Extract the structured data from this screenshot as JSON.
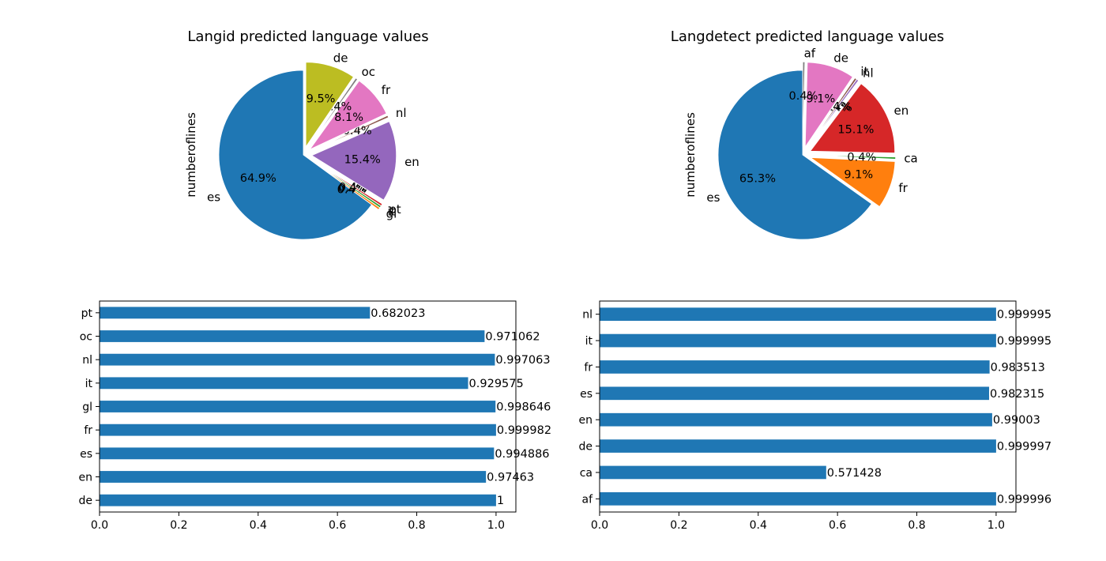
{
  "chart_data": [
    {
      "type": "pie",
      "title": "Langid predicted language values",
      "ylabel": "numberoflines",
      "slices": [
        {
          "label": "es",
          "value": 64.9,
          "pct_label": "64.9%",
          "color": "#1f77b4",
          "explode": 0.0
        },
        {
          "label": "gl",
          "value": 0.4,
          "pct_label": "0.4%",
          "color": "#ff7f0e",
          "explode": 0.1
        },
        {
          "label": "it",
          "value": 0.4,
          "pct_label": "0.4%",
          "color": "#2ca02c",
          "explode": 0.1
        },
        {
          "label": "pt",
          "value": 0.4,
          "pct_label": "0.4%",
          "color": "#d62728",
          "explode": 0.1
        },
        {
          "label": "en",
          "value": 15.4,
          "pct_label": "15.4%",
          "color": "#9467bd",
          "explode": 0.1
        },
        {
          "label": "nl",
          "value": 0.4,
          "pct_label": "0.4%",
          "color": "#8c564b",
          "explode": 0.1
        },
        {
          "label": "fr",
          "value": 8.1,
          "pct_label": "8.1%",
          "color": "#e377c2",
          "explode": 0.1
        },
        {
          "label": "oc",
          "value": 0.4,
          "pct_label": "0.4%",
          "color": "#7f7f7f",
          "explode": 0.1
        },
        {
          "label": "de",
          "value": 9.5,
          "pct_label": "9.5%",
          "color": "#bcbd22",
          "explode": 0.1
        }
      ]
    },
    {
      "type": "pie",
      "title": "Langdetect predicted language values",
      "ylabel": "numberoflines",
      "slices": [
        {
          "label": "es",
          "value": 65.3,
          "pct_label": "65.3%",
          "color": "#1f77b4",
          "explode": 0.0
        },
        {
          "label": "fr",
          "value": 9.1,
          "pct_label": "9.1%",
          "color": "#ff7f0e",
          "explode": 0.1
        },
        {
          "label": "ca",
          "value": 0.4,
          "pct_label": "0.4%",
          "color": "#2ca02c",
          "explode": 0.1
        },
        {
          "label": "en",
          "value": 15.1,
          "pct_label": "15.1%",
          "color": "#d62728",
          "explode": 0.1
        },
        {
          "label": "nl",
          "value": 0.4,
          "pct_label": "0.4%",
          "color": "#9467bd",
          "explode": 0.1
        },
        {
          "label": "it",
          "value": 0.4,
          "pct_label": "0.4%",
          "color": "#8c564b",
          "explode": 0.1
        },
        {
          "label": "de",
          "value": 9.1,
          "pct_label": "9.1%",
          "color": "#e377c2",
          "explode": 0.1
        },
        {
          "label": "af",
          "value": 0.4,
          "pct_label": "0.4%",
          "color": "#7f7f7f",
          "explode": 0.1
        }
      ]
    },
    {
      "type": "bar",
      "orientation": "horizontal",
      "color": "#1f77b4",
      "categories": [
        "de",
        "en",
        "es",
        "fr",
        "gl",
        "it",
        "nl",
        "oc",
        "pt"
      ],
      "values": [
        1,
        0.97463,
        0.994886,
        0.999982,
        0.998646,
        0.929575,
        0.997063,
        0.971062,
        0.682023
      ],
      "value_labels": [
        "1",
        "0.97463",
        "0.994886",
        "0.999982",
        "0.998646",
        "0.929575",
        "0.997063",
        "0.971062",
        "0.682023"
      ],
      "xlim": [
        0,
        1.05
      ],
      "xticks": [
        "0.0",
        "0.2",
        "0.4",
        "0.6",
        "0.8",
        "1.0"
      ]
    },
    {
      "type": "bar",
      "orientation": "horizontal",
      "color": "#1f77b4",
      "categories": [
        "af",
        "ca",
        "de",
        "en",
        "es",
        "fr",
        "it",
        "nl"
      ],
      "values": [
        0.999996,
        0.571428,
        0.999997,
        0.99003,
        0.982315,
        0.983513,
        0.999995,
        0.999995
      ],
      "value_labels": [
        "0.999996",
        "0.571428",
        "0.999997",
        "0.99003",
        "0.982315",
        "0.983513",
        "0.999995",
        "0.999995"
      ],
      "xlim": [
        0,
        1.05
      ],
      "xticks": [
        "0.0",
        "0.2",
        "0.4",
        "0.6",
        "0.8",
        "1.0"
      ]
    }
  ]
}
